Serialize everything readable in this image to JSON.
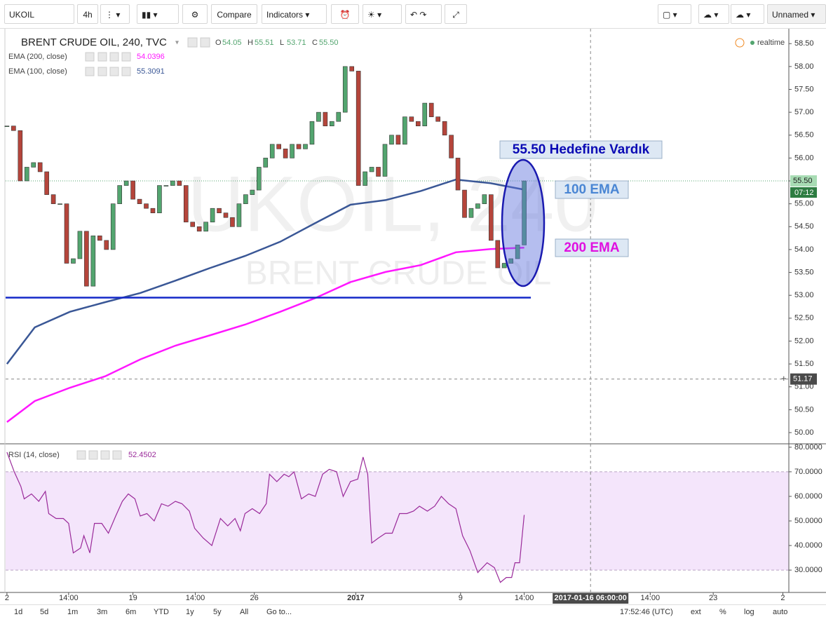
{
  "toolbar": {
    "symbol": "UKOIL",
    "interval": "4h",
    "compare": "Compare",
    "indicators": "Indicators",
    "layout_name": "Unnamed"
  },
  "chart_data": [
    {
      "type": "candlestick",
      "title": "BRENT CRUDE OIL, 240, TVC",
      "watermark": "UKOIL, 240",
      "watermark_subtitle": "BRENT CRUDE OIL",
      "status": "realtime",
      "ohlc_legend": [
        {
          "label": "O",
          "value": "54.05"
        },
        {
          "label": "H",
          "value": "55.51"
        },
        {
          "label": "L",
          "value": "53.71"
        },
        {
          "label": "C",
          "value": "55.50"
        }
      ],
      "x": [
        0,
        1,
        2,
        3,
        4,
        5,
        6,
        7,
        8,
        9,
        10,
        11,
        12,
        13,
        14,
        15,
        16,
        17,
        18,
        19,
        20,
        21,
        22,
        23,
        24,
        25,
        26,
        27,
        28,
        29,
        30,
        31,
        32,
        33,
        34,
        35,
        36,
        37,
        38,
        39,
        40,
        41,
        42,
        43,
        44,
        45,
        46,
        47,
        48,
        49,
        50,
        51,
        52,
        53,
        54,
        55,
        56,
        57,
        58,
        59,
        60,
        61,
        62,
        63,
        64,
        65,
        66,
        67,
        68,
        69,
        70,
        71,
        72,
        73,
        74,
        75,
        76,
        77,
        78
      ],
      "close": [
        56.7,
        56.6,
        55.5,
        55.8,
        55.9,
        55.7,
        55.2,
        55.0,
        55.0,
        53.7,
        53.8,
        54.4,
        53.2,
        54.3,
        54.2,
        54.0,
        55.0,
        55.4,
        55.5,
        55.1,
        55.0,
        54.9,
        54.8,
        55.4,
        55.4,
        55.5,
        55.4,
        54.6,
        54.5,
        54.4,
        54.6,
        54.9,
        54.8,
        54.7,
        54.5,
        55.0,
        55.2,
        55.3,
        55.8,
        56.0,
        56.3,
        56.2,
        56.0,
        56.3,
        56.2,
        56.3,
        56.8,
        57.0,
        56.7,
        56.8,
        57.0,
        58.0,
        57.9,
        55.4,
        55.7,
        55.8,
        55.6,
        56.3,
        56.5,
        56.3,
        56.9,
        56.8,
        56.7,
        57.2,
        56.9,
        56.8,
        56.5,
        56.0,
        55.3,
        54.7,
        54.9,
        55.0,
        55.2,
        54.2,
        53.6,
        53.7,
        53.8,
        54.1,
        55.5
      ],
      "up_color": "#53a56f",
      "down_color": "#b5453b",
      "series": [
        {
          "name": "EMA (200, close)",
          "color": "#ff17ff",
          "value_label": "54.0396",
          "x": [
            0,
            4.2,
            9.5,
            14.8,
            20.1,
            25.4,
            30.7,
            35.9,
            41.2,
            46.5,
            51.8,
            57.1,
            62.4,
            67.7,
            72.9,
            78.0
          ],
          "values": [
            50.23,
            50.69,
            50.98,
            51.23,
            51.6,
            51.9,
            52.13,
            52.36,
            52.64,
            52.94,
            53.29,
            53.51,
            53.66,
            53.94,
            54.01,
            54.0396
          ]
        },
        {
          "name": "EMA (100, close)",
          "color": "#3a5796",
          "value_label": "55.3091",
          "x": [
            0,
            4.2,
            9.5,
            14.8,
            20.1,
            25.4,
            30.7,
            35.9,
            41.2,
            46.5,
            51.8,
            57.1,
            62.4,
            67.7,
            72.9,
            78.0
          ],
          "values": [
            51.5,
            52.3,
            52.64,
            52.85,
            53.05,
            53.32,
            53.6,
            53.86,
            54.17,
            54.58,
            54.98,
            55.08,
            55.28,
            55.53,
            55.45,
            55.3091
          ]
        }
      ],
      "support_line": {
        "y": 52.95,
        "x": [
          -0.2,
          79.0
        ],
        "color": "#1428c8"
      },
      "last_price": {
        "value": 55.5,
        "label": "55.50",
        "countdown": "07:12"
      },
      "crosshair": {
        "x": 88,
        "x_label": "2017-01-16 06:00:00",
        "y": 51.17
      },
      "annotations": [
        "55.50 Hedefine Vardık",
        "100 EMA",
        "200 EMA"
      ],
      "xlim": [
        -0.2,
        117.9
      ],
      "xticks": [
        {
          "value": 0,
          "label": "2"
        },
        {
          "value": 9.3,
          "label": "14:00"
        },
        {
          "value": 19,
          "label": "19"
        },
        {
          "value": 28.4,
          "label": "14:00"
        },
        {
          "value": 37.3,
          "label": "26"
        },
        {
          "value": 52.6,
          "label": "2017"
        },
        {
          "value": 68.4,
          "label": "9"
        },
        {
          "value": 78,
          "label": "14:00"
        },
        {
          "value": 97,
          "label": "14:00"
        },
        {
          "value": 106.5,
          "label": "23"
        },
        {
          "value": 117,
          "label": "2"
        }
      ],
      "ylim": [
        49.77,
        58.81
      ],
      "yticks": [
        {
          "value": 50,
          "label": "50.00"
        },
        {
          "value": 50.5,
          "label": "50.50"
        },
        {
          "value": 51,
          "label": "51.00"
        },
        {
          "value": 51.5,
          "label": "51.50"
        },
        {
          "value": 52,
          "label": "52.00"
        },
        {
          "value": 52.5,
          "label": "52.50"
        },
        {
          "value": 53,
          "label": "53.00"
        },
        {
          "value": 53.5,
          "label": "53.50"
        },
        {
          "value": 54,
          "label": "54.00"
        },
        {
          "value": 54.5,
          "label": "54.50"
        },
        {
          "value": 55,
          "label": "55.00"
        },
        {
          "value": 55.5,
          "label": "55.50"
        },
        {
          "value": 56,
          "label": "56.00"
        },
        {
          "value": 56.5,
          "label": "56.50"
        },
        {
          "value": 57,
          "label": "57.00"
        },
        {
          "value": 57.5,
          "label": "57.50"
        },
        {
          "value": 58,
          "label": "58.00"
        },
        {
          "value": 58.5,
          "label": "58.50"
        }
      ]
    },
    {
      "type": "line",
      "title": "RSI (14, close)",
      "value_label": "52.4502",
      "color": "#9a2a9a",
      "band": [
        30,
        70
      ],
      "band_color": "#f4e5fb",
      "x": [
        0,
        1.1,
        2.1,
        2.6,
        3.7,
        4.8,
        5.8,
        6.3,
        7.4,
        8.5,
        9.3,
        10.0,
        11.1,
        11.6,
        12.5,
        13.2,
        14.3,
        15.3,
        16.4,
        17.4,
        18.3,
        19.3,
        20.1,
        21.1,
        22.2,
        23.3,
        24.3,
        25.4,
        26.4,
        27.5,
        28.3,
        29.6,
        30.9,
        32.2,
        33.3,
        34.4,
        35.2,
        35.9,
        37.0,
        38.1,
        39.1,
        39.6,
        40.7,
        41.8,
        42.5,
        43.3,
        44.4,
        45.5,
        46.5,
        47.6,
        48.6,
        49.7,
        50.7,
        51.8,
        52.9,
        53.7,
        54.4,
        55.0,
        56.0,
        57.1,
        58.1,
        59.2,
        60.3,
        61.3,
        62.2,
        63.4,
        64.5,
        65.5,
        66.6,
        67.7,
        68.7,
        69.8,
        71.0,
        72.4,
        73.5,
        74.4,
        75.3,
        76.1,
        76.6,
        77.3,
        78.0
      ],
      "values": [
        78,
        70,
        64,
        59,
        61,
        58,
        62,
        53,
        51,
        51,
        49,
        37,
        39,
        44,
        37,
        49,
        49,
        45,
        52,
        58,
        61,
        59,
        52,
        53,
        50,
        57,
        56,
        58,
        57,
        54,
        47,
        43,
        40,
        51,
        48,
        51,
        46,
        53,
        55,
        53,
        57,
        69,
        66,
        69,
        68,
        70,
        59,
        61,
        60,
        69,
        71,
        70,
        60,
        66,
        67,
        76,
        69,
        41,
        43,
        45,
        45,
        53,
        53,
        54,
        56,
        54,
        56,
        60,
        57,
        55,
        44,
        38,
        29,
        33,
        31,
        25,
        27,
        27,
        33,
        33,
        52.4502
      ],
      "xlim": [
        -0.2,
        117.9
      ],
      "ylim": [
        20.9,
        81.1
      ],
      "yticks": [
        {
          "value": 30,
          "label": "30.0000"
        },
        {
          "value": 40,
          "label": "40.0000"
        },
        {
          "value": 50,
          "label": "50.0000"
        },
        {
          "value": 60,
          "label": "60.0000"
        },
        {
          "value": 70,
          "label": "70.0000"
        },
        {
          "value": 80,
          "label": "80.0000"
        }
      ]
    }
  ],
  "bottom_bar": {
    "ranges": [
      "1d",
      "5d",
      "1m",
      "3m",
      "6m",
      "YTD",
      "1y",
      "5y",
      "All"
    ],
    "goto": "Go to...",
    "clock": "17:52:46 (UTC)",
    "options": [
      "ext",
      "%",
      "log",
      "auto"
    ]
  }
}
